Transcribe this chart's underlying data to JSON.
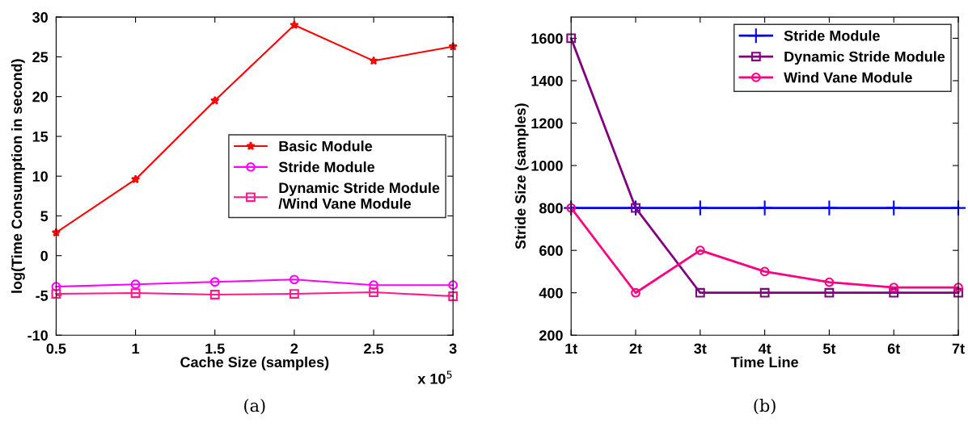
{
  "chart_data": [
    {
      "type": "line",
      "xlabel": "Cache Size (samples)",
      "ylabel": "log(Time Consumption in second)",
      "x": [
        0.5,
        1,
        1.5,
        2,
        2.5,
        3
      ],
      "xlim": [
        0.5,
        3
      ],
      "xticks": [
        0.5,
        1,
        1.5,
        2,
        2.5,
        3
      ],
      "ylim": [
        -10,
        30
      ],
      "yticks": [
        -10,
        -5,
        0,
        5,
        10,
        15,
        20,
        25,
        30
      ],
      "legend": "right",
      "grid": false,
      "annotations": [
        "x 10$^{5}$",
        "(a)"
      ],
      "series": [
        {
          "name": "Basic Module",
          "color": "#ff0000",
          "marker": "star",
          "values": [
            2.9,
            9.6,
            19.5,
            29,
            24.5,
            26.3
          ]
        },
        {
          "name": "Stride Module",
          "color": "#ff00ff",
          "marker": "circle",
          "values": [
            -3.9,
            -3.6,
            -3.3,
            -3.0,
            -3.7,
            -3.7
          ]
        },
        {
          "name": "Dynamic Stride Module\n/Wind Vane Module",
          "color": "#ff1a8c",
          "marker": "square",
          "values": [
            -4.8,
            -4.7,
            -4.9,
            -4.8,
            -4.6,
            -5.1
          ]
        }
      ]
    },
    {
      "type": "line",
      "xlabel": "Time Line",
      "ylabel": "Stride Size (samples)",
      "categories": [
        "1t",
        "2t",
        "3t",
        "4t",
        "5t",
        "6t",
        "7t"
      ],
      "ylim": [
        200,
        1700
      ],
      "yticks": [
        200,
        400,
        600,
        800,
        1000,
        1200,
        1400,
        1600
      ],
      "legend": "top right",
      "grid": false,
      "annotations": [
        "(b)"
      ],
      "series": [
        {
          "name": "Stride Module",
          "color": "#0000ff",
          "marker": "cross",
          "values": [
            800,
            800,
            800,
            800,
            800,
            800,
            800
          ]
        },
        {
          "name": "Dynamic Stride Module",
          "color": "#800080",
          "marker": "square",
          "values": [
            1600,
            800,
            400,
            400,
            400,
            400,
            400
          ]
        },
        {
          "name": "Wind Vane Module",
          "color": "#ff0080",
          "marker": "circle",
          "values": [
            800,
            400,
            600,
            500,
            450,
            425,
            425
          ]
        }
      ]
    }
  ]
}
